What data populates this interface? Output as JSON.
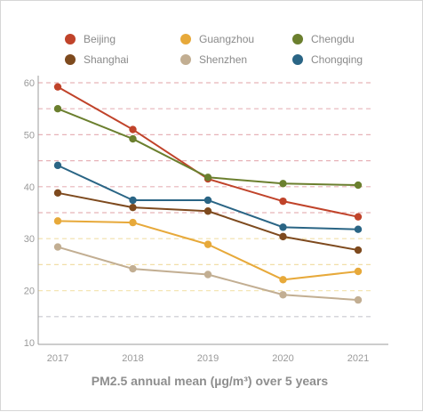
{
  "chart_data": {
    "type": "line",
    "title": "PM2.5 annual mean (µg/m³) over 5 years",
    "xlabel": "",
    "ylabel": "",
    "x": [
      "2017",
      "2018",
      "2019",
      "2020",
      "2021"
    ],
    "ylim": [
      10,
      60
    ],
    "yticks": [
      "10",
      "20",
      "30",
      "40",
      "50",
      "60"
    ],
    "grid": "dashed horizontal",
    "legend": "top",
    "series": [
      {
        "name": "Beijing",
        "color": "#c0432a",
        "values": [
          59.2,
          51.0,
          41.5,
          37.2,
          34.2
        ]
      },
      {
        "name": "Shanghai",
        "color": "#7e4a1e",
        "values": [
          38.8,
          36.0,
          35.3,
          30.4,
          27.8
        ]
      },
      {
        "name": "Guangzhou",
        "color": "#e7a93a",
        "values": [
          33.4,
          33.1,
          28.9,
          22.1,
          23.7
        ]
      },
      {
        "name": "Shenzhen",
        "color": "#c2ae92",
        "values": [
          28.4,
          24.2,
          23.1,
          19.2,
          18.2
        ]
      },
      {
        "name": "Chengdu",
        "color": "#6b7f2e",
        "values": [
          55.0,
          49.2,
          41.8,
          40.6,
          40.3
        ]
      },
      {
        "name": "Chongqing",
        "color": "#2a6585",
        "values": [
          44.1,
          37.4,
          37.4,
          32.2,
          31.8
        ]
      }
    ]
  }
}
